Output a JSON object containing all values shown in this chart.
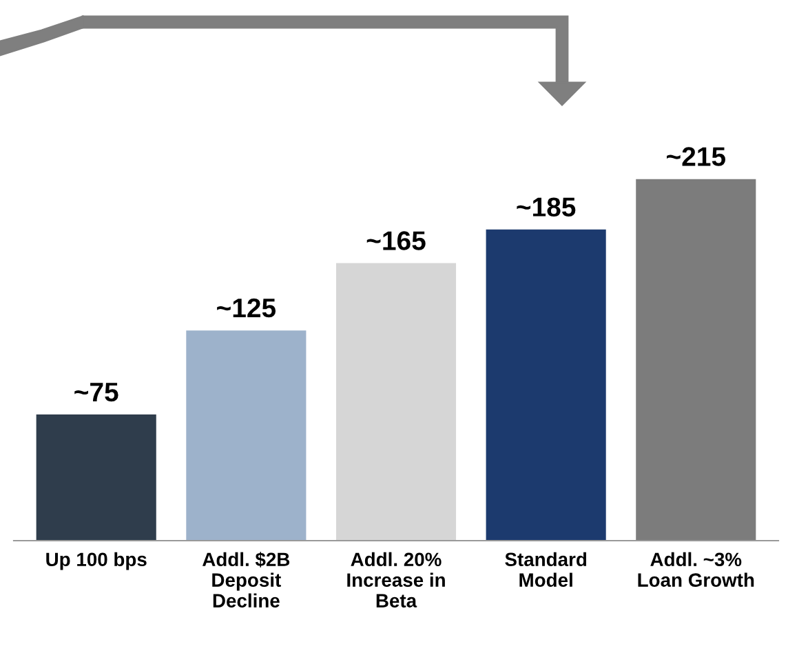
{
  "chart_data": {
    "type": "bar",
    "categories": [
      "Up 100 bps",
      "Addl. $2B\nDeposit\nDecline",
      "Addl. 20%\nIncrease in\nBeta",
      "Standard\nModel",
      "Addl. ~3%\nLoan Growth"
    ],
    "values": [
      75,
      125,
      165,
      185,
      215
    ],
    "value_labels": [
      "~75",
      "~125",
      "~165",
      "~185",
      "~215"
    ],
    "colors": [
      "#2f3d4c",
      "#9db2cb",
      "#d6d6d6",
      "#1c3a6e",
      "#7c7c7c"
    ],
    "grid": false
  }
}
